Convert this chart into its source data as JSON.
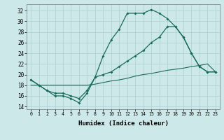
{
  "xlabel": "Humidex (Indice chaleur)",
  "bg_color": "#cce8e8",
  "line_color": "#1a6b5e",
  "grid_color": "#aacfcf",
  "xlim": [
    -0.5,
    23.5
  ],
  "ylim": [
    13.5,
    33.2
  ],
  "xticks": [
    0,
    1,
    2,
    3,
    4,
    5,
    6,
    7,
    8,
    9,
    10,
    11,
    12,
    13,
    14,
    15,
    16,
    17,
    18,
    19,
    20,
    21,
    22,
    23
  ],
  "yticks": [
    14,
    16,
    18,
    20,
    22,
    24,
    26,
    28,
    30,
    32
  ],
  "line1_x": [
    0,
    1,
    2,
    3,
    4,
    5,
    6,
    7,
    8,
    9,
    10,
    11,
    12,
    13,
    14,
    15,
    16,
    17,
    18,
    19,
    20,
    21,
    22,
    23
  ],
  "line1_y": [
    19,
    18,
    17,
    16,
    16,
    15.5,
    14.7,
    16.5,
    19.5,
    23.5,
    26.5,
    28.5,
    31.5,
    31.5,
    31.5,
    32.2,
    31.5,
    30.5,
    29,
    27,
    24,
    21.5,
    20.5,
    20.5
  ],
  "line2_x": [
    0,
    1,
    2,
    3,
    4,
    5,
    6,
    7,
    8,
    9,
    10,
    11,
    12,
    13,
    14,
    15,
    16,
    17,
    18,
    19,
    20,
    21,
    22,
    23
  ],
  "line2_y": [
    19,
    18,
    17,
    16.5,
    16.5,
    16,
    15.5,
    17,
    19.5,
    20,
    20.5,
    21.5,
    22.5,
    23.5,
    24.5,
    26,
    27,
    29,
    29,
    27,
    24,
    21.5,
    20.5,
    20.5
  ],
  "line3_x": [
    0,
    1,
    2,
    3,
    4,
    5,
    6,
    7,
    8,
    9,
    10,
    11,
    12,
    13,
    14,
    15,
    16,
    17,
    18,
    19,
    20,
    21,
    22,
    23
  ],
  "line3_y": [
    18,
    18,
    18,
    18,
    18,
    18,
    18,
    18,
    18.2,
    18.5,
    18.8,
    19,
    19.3,
    19.7,
    20,
    20.2,
    20.5,
    20.8,
    21,
    21.2,
    21.5,
    21.7,
    22,
    20.5
  ]
}
